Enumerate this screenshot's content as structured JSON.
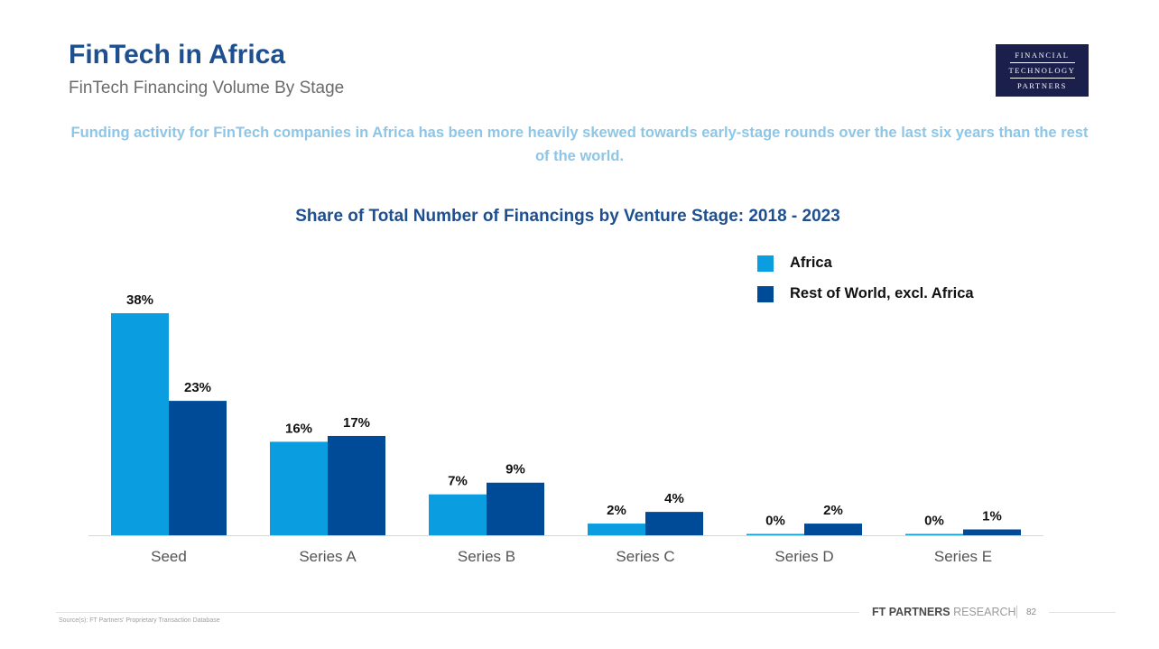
{
  "header": {
    "title": "FinTech in Africa",
    "subtitle": "FinTech Financing Volume By Stage",
    "logo_lines": [
      "FINANCIAL",
      "TECHNOLOGY",
      "PARTNERS"
    ]
  },
  "headline": "Funding activity for FinTech companies in Africa has been more heavily skewed towards early-stage rounds over the last six years than the rest of the world.",
  "chart_data": {
    "type": "bar",
    "title": "Share of Total Number of Financings by Venture Stage: 2018 - 2023",
    "categories": [
      "Seed",
      "Series A",
      "Series B",
      "Series C",
      "Series D",
      "Series E"
    ],
    "series": [
      {
        "name": "Africa",
        "color": "#0a9de0",
        "values": [
          38,
          16,
          7,
          2,
          0,
          0
        ]
      },
      {
        "name": "Rest of World, excl. Africa",
        "color": "#004b97",
        "values": [
          23,
          17,
          9,
          4,
          2,
          1
        ]
      }
    ],
    "value_suffix": "%",
    "xlabel": "",
    "ylabel": "",
    "ylim": [
      0,
      38
    ],
    "grid": false,
    "legend_position": "top-right"
  },
  "footer": {
    "brand_strong": "FT PARTNERS",
    "brand_light": "RESEARCH",
    "page": "82",
    "source": "Source(s): FT Partners' Proprietary Transaction Database"
  }
}
